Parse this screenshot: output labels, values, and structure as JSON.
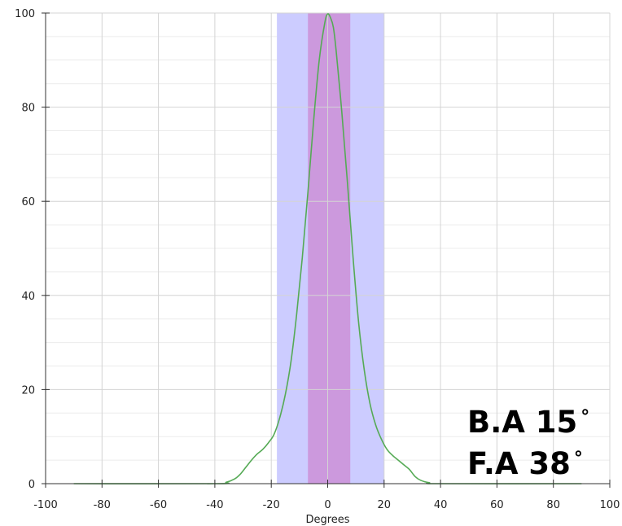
{
  "chart_data": {
    "type": "area",
    "title": "",
    "xlabel": "Degrees",
    "ylabel": "",
    "xlim": [
      -100,
      100
    ],
    "ylim": [
      0,
      100
    ],
    "xticks": [
      -100,
      -80,
      -60,
      -40,
      -20,
      0,
      20,
      40,
      60,
      80,
      100
    ],
    "yticks": [
      0,
      20,
      40,
      60,
      80,
      100
    ],
    "grid": true,
    "legend": "none",
    "bands": [
      {
        "label": "F.A",
        "x0": -18,
        "x1": 20,
        "color": "#ccccff"
      },
      {
        "label": "B.A",
        "x0": -7,
        "x1": 8,
        "color": "#cc99dd"
      }
    ],
    "series": [
      {
        "color": "#55aa55",
        "x": [
          -90,
          -40,
          -36,
          -33,
          -31,
          -29,
          -27,
          -25,
          -23,
          -21,
          -19,
          -17,
          -15,
          -13,
          -11,
          -9,
          -7,
          -5,
          -3,
          -1,
          0,
          1,
          2,
          3,
          5,
          7,
          9,
          11,
          13,
          15,
          17,
          19,
          21,
          23,
          25,
          27,
          29,
          31,
          33,
          36,
          40,
          90
        ],
        "y": [
          0,
          0,
          0.3,
          1,
          2,
          3.5,
          5,
          6.3,
          7.3,
          8.7,
          10.5,
          14,
          19,
          26,
          36,
          48,
          62,
          77,
          90,
          98,
          99.8,
          99,
          97,
          92,
          79,
          64,
          48,
          34,
          24,
          17,
          12.5,
          9.5,
          7.3,
          6,
          5,
          4,
          3,
          1.5,
          0.7,
          0.2,
          0,
          0
        ]
      }
    ],
    "annotations": [
      {
        "label": "B.A 15",
        "unit": "°"
      },
      {
        "label": "F.A 38",
        "unit": "°"
      }
    ]
  }
}
